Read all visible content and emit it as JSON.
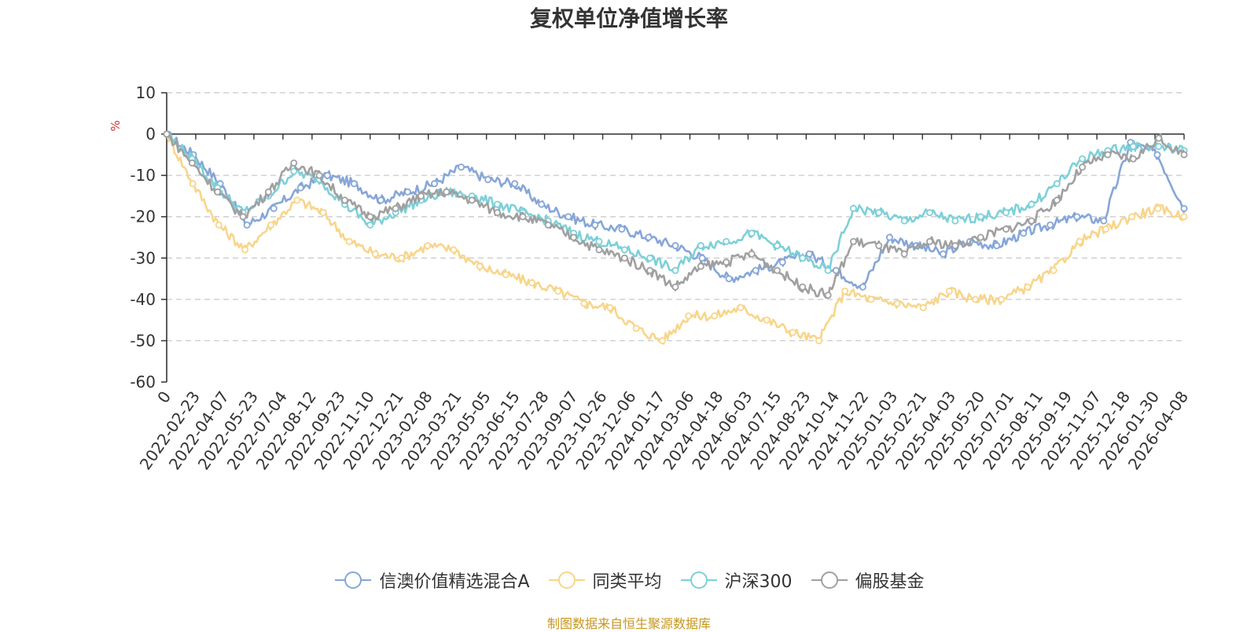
{
  "chart_data": {
    "type": "line",
    "title": "复权单位净值增长率",
    "ylabel": "%",
    "xlabel": "",
    "ylim": [
      -60,
      10
    ],
    "y_ticks": [
      10,
      0,
      -10,
      -20,
      -30,
      -40,
      -50,
      -60
    ],
    "x_ticks": [
      "0",
      "2022-02-23",
      "2022-04-07",
      "2022-05-23",
      "2022-07-04",
      "2022-08-12",
      "2022-09-23",
      "2022-11-10",
      "2022-12-21",
      "2023-02-08",
      "2023-03-21",
      "2023-05-05",
      "2023-06-15",
      "2023-07-28",
      "2023-09-07",
      "2023-10-26",
      "2023-12-06",
      "2024-01-17",
      "2024-03-06",
      "2024-04-18",
      "2024-06-03",
      "2024-07-15",
      "2024-08-23",
      "2024-10-14",
      "2024-11-22",
      "2025-01-03",
      "2025-02-21",
      "2025-04-03",
      "2025-05-20",
      "2025-07-01",
      "2025-08-11",
      "2025-09-19",
      "2025-11-07",
      "2025-12-18",
      "2026-01-30",
      "2026-04-08"
    ],
    "series": [
      {
        "name": "信澳价值精选混合A",
        "color": "#86a6d8",
        "values": [
          0,
          -5,
          -12,
          -22,
          -18,
          -13,
          -10,
          -12,
          -16,
          -14,
          -12,
          -8,
          -11,
          -12,
          -17,
          -20,
          -22,
          -23,
          -25,
          -27,
          -30,
          -35,
          -33,
          -31,
          -29,
          -33,
          -37,
          -25,
          -27,
          -29,
          -26,
          -27,
          -24,
          -22,
          -20,
          -21,
          -2,
          -5,
          -18
        ]
      },
      {
        "name": "同类平均",
        "color": "#f8d58a",
        "values": [
          0,
          -12,
          -22,
          -28,
          -22,
          -16,
          -19,
          -26,
          -29,
          -30,
          -27,
          -28,
          -32,
          -34,
          -36,
          -38,
          -41,
          -42,
          -47,
          -50,
          -44,
          -44,
          -42,
          -45,
          -48,
          -50,
          -38,
          -40,
          -41,
          -42,
          -38,
          -40,
          -40,
          -37,
          -33,
          -26,
          -23,
          -20,
          -18,
          -20
        ]
      },
      {
        "name": "沪深300",
        "color": "#7dd0d8",
        "values": [
          0,
          -6,
          -13,
          -19,
          -15,
          -9,
          -11,
          -17,
          -22,
          -19,
          -16,
          -14,
          -15,
          -17,
          -19,
          -21,
          -24,
          -26,
          -28,
          -30,
          -33,
          -27,
          -26,
          -24,
          -27,
          -30,
          -33,
          -18,
          -19,
          -21,
          -19,
          -21,
          -20,
          -19,
          -17,
          -12,
          -6,
          -4,
          -3,
          -3,
          -4
        ]
      },
      {
        "name": "偏股基金",
        "color": "#a0a0a0",
        "values": [
          0,
          -7,
          -14,
          -20,
          -14,
          -7,
          -10,
          -16,
          -20,
          -18,
          -15,
          -14,
          -16,
          -19,
          -20,
          -22,
          -25,
          -28,
          -30,
          -33,
          -37,
          -32,
          -31,
          -29,
          -33,
          -37,
          -39,
          -26,
          -27,
          -29,
          -26,
          -27,
          -25,
          -23,
          -21,
          -16,
          -8,
          -5,
          -6,
          -1,
          -5
        ]
      }
    ]
  },
  "source_text": "制图数据来自恒生聚源数据库"
}
